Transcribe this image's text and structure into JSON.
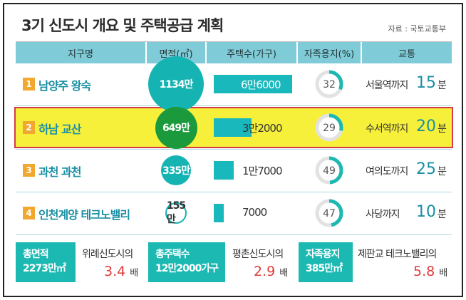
{
  "title": "3기 신도시 개요 및 주택공급 계획",
  "source": "자료 : 국토교통부",
  "columns": [
    "지구명",
    "면적(㎡)",
    "주택수(가구)",
    "자족용지(%)",
    "교통"
  ],
  "rows": [
    {
      "no": "1",
      "name": "남양주 왕숙",
      "area_label": "1134만",
      "area": 1134,
      "houses_label": "6만6000",
      "houses": 66000,
      "self_pct_label": "32",
      "self_pct": 32,
      "transport_dest": "서울역까지",
      "transport_min": "15",
      "transport_unit": "분"
    },
    {
      "no": "2",
      "name": "하남 교산",
      "area_label": "649만",
      "area": 649,
      "houses_label": "3만2000",
      "houses": 32000,
      "self_pct_label": "29",
      "self_pct": 29,
      "transport_dest": "수서역까지",
      "transport_min": "20",
      "transport_unit": "분"
    },
    {
      "no": "3",
      "name": "과천 과천",
      "area_label": "335만",
      "area": 335,
      "houses_label": "1만7000",
      "houses": 17000,
      "self_pct_label": "49",
      "self_pct": 49,
      "transport_dest": "여의도까지",
      "transport_min": "25",
      "transport_unit": "분"
    },
    {
      "no": "4",
      "name": "인천계양 테크노밸리",
      "area_label": "155만",
      "area": 155,
      "houses_label": "7000",
      "houses": 7000,
      "self_pct_label": "47",
      "self_pct": 47,
      "transport_dest": "사당까지",
      "transport_min": "10",
      "transport_unit": "분"
    }
  ],
  "summary": [
    {
      "box_line1": "총면적",
      "box_line2": "2273만㎡",
      "compare": "위례신도시의",
      "multiple": "3.4",
      "unit": "배"
    },
    {
      "box_line1": "총주택수",
      "box_line2": "12만2000가구",
      "compare": "평촌신도시의",
      "multiple": "2.9",
      "unit": "배"
    },
    {
      "box_line1": "자족용지",
      "box_line2": "385만㎡",
      "compare": "제판교 테크노밸리의",
      "multiple": "5.8",
      "unit": "배"
    }
  ],
  "colors": {
    "header_bg": "#7fcbd8",
    "highlight_row": "#f6f03a",
    "highlight_border": "#d43a4a",
    "area_circle": "#16b3b3",
    "area_circle_highlight": "#1a9a3c",
    "house_bar": "#19b8bd",
    "donut_fill": "#1cb8b2",
    "donut_track": "#e2e2e2",
    "name_text": "#1a8fa3",
    "badge": "#f2a72e",
    "multiple_text": "#e03a3a"
  },
  "chart_data": {
    "type": "table",
    "categories": [
      "남양주 왕숙",
      "하남 교산",
      "과천 과천",
      "인천계양 테크노밸리"
    ],
    "series": [
      {
        "name": "면적(㎡)",
        "values": [
          11340000,
          6490000,
          3350000,
          1550000
        ]
      },
      {
        "name": "주택수(가구)",
        "values": [
          66000,
          32000,
          17000,
          7000
        ]
      },
      {
        "name": "자족용지(%)",
        "values": [
          32,
          29,
          49,
          47
        ]
      }
    ]
  }
}
